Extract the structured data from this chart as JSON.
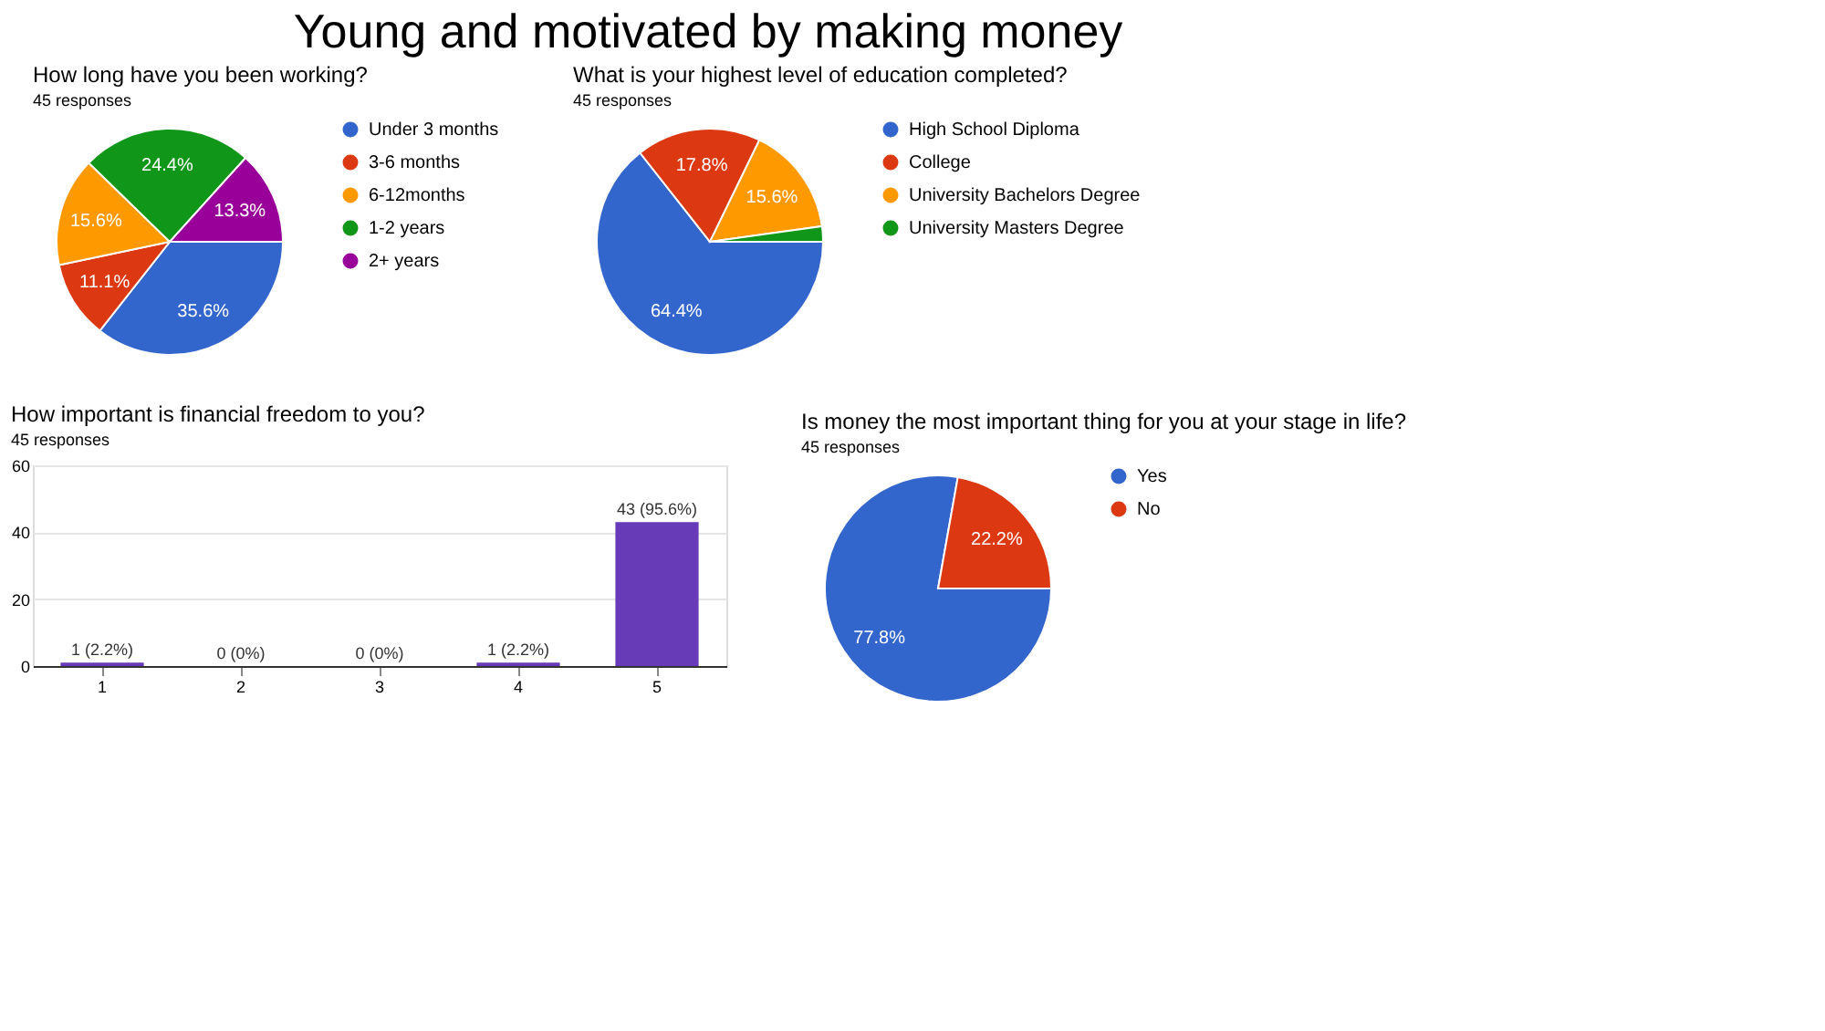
{
  "chart_data": [
    {
      "type": "other",
      "title": "Young and motivated by making money"
    },
    {
      "type": "pie",
      "title": "How long have you been working?",
      "subtitle": "45 responses",
      "categories": [
        "Under 3 months",
        "3-6 months",
        "6-12months",
        "1-2 years",
        "2+ years"
      ],
      "values": [
        35.6,
        11.1,
        15.6,
        24.4,
        13.3
      ],
      "colors": [
        "#3366cc",
        "#dc3912",
        "#ff9900",
        "#109618",
        "#990099"
      ],
      "value_labels": [
        "35.6%",
        "11.1%",
        "15.6%",
        "24.4%",
        "13.3%"
      ],
      "legend": "right"
    },
    {
      "type": "pie",
      "title": "What is your highest level of education completed?",
      "subtitle": "45 responses",
      "categories": [
        "High School Diploma",
        "College",
        "University Bachelors Degree",
        "University Masters Degree"
      ],
      "values": [
        64.4,
        17.8,
        15.6,
        2.2
      ],
      "colors": [
        "#3366cc",
        "#dc3912",
        "#ff9900",
        "#109618"
      ],
      "value_labels": [
        "64.4%",
        "17.8%",
        "15.6%",
        null
      ],
      "legend": "right"
    },
    {
      "type": "bar",
      "title": "How important is financial freedom to you?",
      "subtitle": "45 responses",
      "categories": [
        "1",
        "2",
        "3",
        "4",
        "5"
      ],
      "values": [
        1,
        0,
        0,
        1,
        43
      ],
      "color": "#673ab7",
      "value_labels": [
        "1 (2.2%)",
        "0 (0%)",
        "0 (0%)",
        "1 (2.2%)",
        "43 (95.6%)"
      ],
      "ylim": [
        0,
        60
      ],
      "yticks": [
        0,
        20,
        40,
        60
      ],
      "grid": "y"
    },
    {
      "type": "pie",
      "title": "Is money the most important thing for you at your stage in life?",
      "subtitle": "45 responses",
      "categories": [
        "Yes",
        "No"
      ],
      "values": [
        77.8,
        22.2
      ],
      "colors": [
        "#3366cc",
        "#dc3912"
      ],
      "value_labels": [
        "77.8%",
        "22.2%"
      ],
      "legend": "right"
    }
  ]
}
